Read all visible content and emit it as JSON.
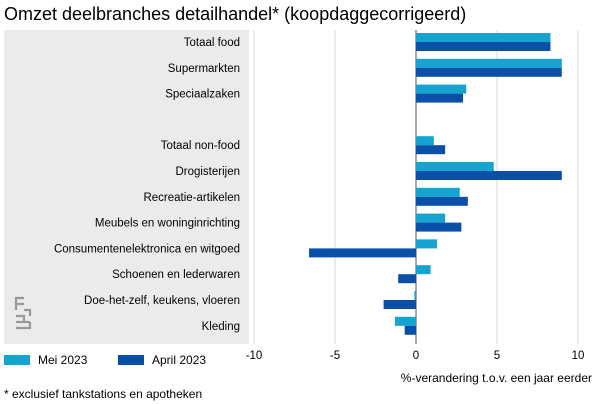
{
  "title": "Omzet deelbranches detailhandel* (koopdaggecorrigeerd)",
  "footnote": "* exclusief tankstations en apotheken",
  "chart_data": {
    "type": "bar",
    "orientation": "horizontal",
    "xlabel": "%-verandering t.o.v. een jaar eerder",
    "xlim": [
      -10,
      10
    ],
    "xticks": [
      -10,
      -5,
      0,
      5,
      10
    ],
    "legend_placement": "bottom-left",
    "grid": true,
    "categories": [
      "Totaal food",
      "Supermarkten",
      "Speciaalzaken",
      "",
      "Totaal non-food",
      "Drogisterijen",
      "Recreatie-artikelen",
      "Meubels en woninginrichting",
      "Consumentenelektronica en witgoed",
      "Schoenen en lederwaren",
      "Doe-het-zelf, keukens, vloeren",
      "Kleding"
    ],
    "series": [
      {
        "name": "Mei 2023",
        "color": "#15a4cf",
        "values": [
          8.3,
          9.0,
          3.1,
          null,
          1.1,
          4.8,
          2.7,
          1.8,
          1.3,
          0.9,
          -0.1,
          -1.3
        ]
      },
      {
        "name": "April 2023",
        "color": "#0a4fa8",
        "values": [
          8.3,
          9.0,
          2.9,
          null,
          1.8,
          9.0,
          3.2,
          2.8,
          -6.6,
          -1.1,
          -2.0,
          -0.7
        ]
      }
    ]
  }
}
